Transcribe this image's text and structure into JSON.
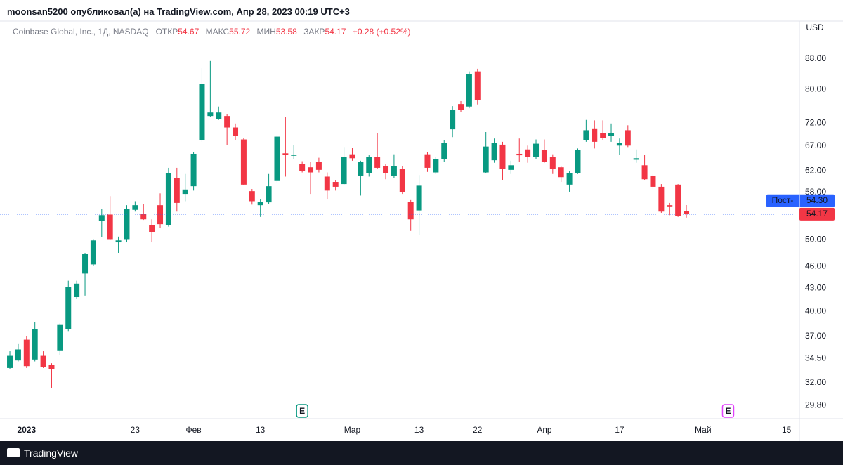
{
  "header": "moonsan5200 опубликовал(а) на TradingView.com, Апр 28, 2023 00:19 UTC+3",
  "footer": "TradingView",
  "chart_data": {
    "type": "candlestick",
    "title": "Coinbase Global, Inc., 1Д, NASDAQ",
    "labels": {
      "open": "ОТКР",
      "high": "МАКС",
      "low": "МИН",
      "close": "ЗАКР"
    },
    "change": "+0.28 (+0.52%)",
    "currency": "USD",
    "log": true,
    "grid": false,
    "up_color": "#089981",
    "down_color": "#f23645",
    "open": [
      33.5,
      34.3,
      36.6,
      34.4,
      34.8,
      33.8,
      35.4,
      37.8,
      41.8,
      45.0,
      46.3,
      53.0,
      54.1,
      49.6,
      50.1,
      54.9,
      54.2,
      52.4,
      55.7,
      52.4,
      60.6,
      57.7,
      59.1,
      68.2,
      73.6,
      72.9,
      73.6,
      71.0,
      68.4,
      58.2,
      55.7,
      56.2,
      60.2,
      65.5,
      65.0,
      63.3,
      62.7,
      63.8,
      60.9,
      59.9,
      59.5,
      65.3,
      61.1,
      61.6,
      64.8,
      62.9,
      61.1,
      62.4,
      56.3,
      54.8,
      65.3,
      61.7,
      64.3,
      70.6,
      76.4,
      75.8,
      84.6,
      61.7,
      64.1,
      67.3,
      62.2,
      65.4,
      66.3,
      64.8,
      66.2,
      64.8,
      62.7,
      59.4,
      61.6,
      68.3,
      70.8,
      69.8,
      69.2,
      67.1,
      70.4,
      64.2,
      63.1,
      61.1,
      59.0,
      55.7,
      59.4,
      54.67
    ],
    "high": [
      35.3,
      36.1,
      37.0,
      38.7,
      35.3,
      34.0,
      38.5,
      44.0,
      44.0,
      48.0,
      50.1,
      55.0,
      57.3,
      50.5,
      55.7,
      56.4,
      55.9,
      53.3,
      57.8,
      62.6,
      62.6,
      61.4,
      65.8,
      85.5,
      87.4,
      75.8,
      74.1,
      71.9,
      68.7,
      58.6,
      56.7,
      61.4,
      69.3,
      73.4,
      67.2,
      63.9,
      63.7,
      64.6,
      61.7,
      60.3,
      66.8,
      66.6,
      64.0,
      65.1,
      69.7,
      63.4,
      65.3,
      63.0,
      56.6,
      61.2,
      65.7,
      64.8,
      68.2,
      75.9,
      77.1,
      84.6,
      85.3,
      70.0,
      68.6,
      67.9,
      64.0,
      68.6,
      67.1,
      68.4,
      68.4,
      65.3,
      63.0,
      61.9,
      66.5,
      72.7,
      72.6,
      72.6,
      71.9,
      68.6,
      71.5,
      66.3,
      65.2,
      61.4,
      59.5,
      56.1,
      59.5,
      55.72
    ],
    "low": [
      33.4,
      34.2,
      33.5,
      34.2,
      33.5,
      31.5,
      34.9,
      37.6,
      41.6,
      42.0,
      46.1,
      50.4,
      50.0,
      48.0,
      49.6,
      54.6,
      53.2,
      49.6,
      51.9,
      52.1,
      54.6,
      56.4,
      58.3,
      67.9,
      73.4,
      72.7,
      67.2,
      68.2,
      59.3,
      55.8,
      53.7,
      55.9,
      59.7,
      60.9,
      64.4,
      61.7,
      57.7,
      61.7,
      56.7,
      58.3,
      59.4,
      64.0,
      57.4,
      60.9,
      62.4,
      60.4,
      60.6,
      57.7,
      51.4,
      50.7,
      61.8,
      61.4,
      63.7,
      68.9,
      74.5,
      75.4,
      76.3,
      61.6,
      63.6,
      60.3,
      61.4,
      63.7,
      63.6,
      64.4,
      63.6,
      61.4,
      59.9,
      58.1,
      61.4,
      67.9,
      66.5,
      68.3,
      67.9,
      65.2,
      66.8,
      63.6,
      60.3,
      58.6,
      54.4,
      54.0,
      53.7,
      53.58
    ],
    "close": [
      34.8,
      35.5,
      33.7,
      37.8,
      33.6,
      33.4,
      38.4,
      43.2,
      43.6,
      47.8,
      49.9,
      54.0,
      50.1,
      49.9,
      55.0,
      55.7,
      53.3,
      51.2,
      52.5,
      61.6,
      56.1,
      58.5,
      65.4,
      81.3,
      74.4,
      74.4,
      71.0,
      69.2,
      59.4,
      56.4,
      56.3,
      59.1,
      69.0,
      65.2,
      65.2,
      62.0,
      61.7,
      62.2,
      58.3,
      59.0,
      64.8,
      64.5,
      63.7,
      64.7,
      62.6,
      61.6,
      62.9,
      58.0,
      53.3,
      59.2,
      62.6,
      64.4,
      67.7,
      75.0,
      75.0,
      83.9,
      77.4,
      66.9,
      67.7,
      62.4,
      63.1,
      65.1,
      64.7,
      67.5,
      63.8,
      62.4,
      60.8,
      61.6,
      66.2,
      70.4,
      67.9,
      68.7,
      69.8,
      67.7,
      67.1,
      64.5,
      60.4,
      59.0,
      54.6,
      55.5,
      53.89,
      54.17
    ],
    "post_market": {
      "name": "Пост-",
      "value": 54.3,
      "label": "54.30",
      "color": "#2962ff"
    },
    "xlim": [
      -1.18,
      94.54
    ],
    "xticks": [
      {
        "value": 2,
        "label": "2023"
      },
      {
        "value": 15,
        "label": "23"
      },
      {
        "value": 22,
        "label": "Фев"
      },
      {
        "value": 30,
        "label": "13"
      },
      {
        "value": 41,
        "label": "Мар"
      },
      {
        "value": 49,
        "label": "13"
      },
      {
        "value": 56,
        "label": "22"
      },
      {
        "value": 64,
        "label": "Апр"
      },
      {
        "value": 73,
        "label": "17"
      },
      {
        "value": 83,
        "label": "Май"
      },
      {
        "value": 93,
        "label": "15"
      }
    ],
    "ylim": [
      28.6,
      99
    ],
    "yticks": [
      {
        "value": 88,
        "label": "88.00"
      },
      {
        "value": 80,
        "label": "80.00"
      },
      {
        "value": 72,
        "label": "72.00"
      },
      {
        "value": 67,
        "label": "67.00"
      },
      {
        "value": 62,
        "label": "62.00"
      },
      {
        "value": 58,
        "label": "58.00"
      },
      {
        "value": 50,
        "label": "50.00"
      },
      {
        "value": 46,
        "label": "46.00"
      },
      {
        "value": 43,
        "label": "43.00"
      },
      {
        "value": 40,
        "label": "40.00"
      },
      {
        "value": 37,
        "label": "37.00"
      },
      {
        "value": 34.5,
        "label": "34.50"
      },
      {
        "value": 32,
        "label": "32.00"
      },
      {
        "value": 29.8,
        "label": "29.80"
      }
    ],
    "events": [
      {
        "x": 35,
        "label": "E",
        "color": "#089981"
      },
      {
        "x": 86,
        "label": "E",
        "color": "#e040fb"
      }
    ]
  }
}
